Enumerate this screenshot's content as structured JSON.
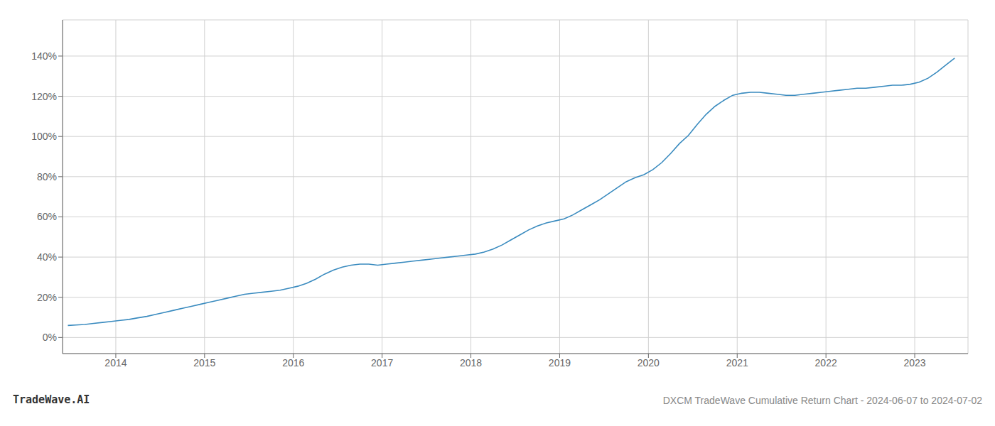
{
  "chart_data": {
    "type": "line",
    "title": "DXCM TradeWave Cumulative Return Chart - 2024-06-07 to 2024-07-02",
    "annotations": [
      "TradeWave.AI"
    ],
    "color": "#3a8bbf",
    "grid": true,
    "x": [
      2013.46,
      2013.55,
      2013.65,
      2013.75,
      2013.85,
      2013.95,
      2014.05,
      2014.15,
      2014.25,
      2014.35,
      2014.45,
      2014.55,
      2014.65,
      2014.75,
      2014.85,
      2014.95,
      2015.05,
      2015.15,
      2015.25,
      2015.35,
      2015.45,
      2015.55,
      2015.65,
      2015.75,
      2015.85,
      2015.95,
      2016.05,
      2016.15,
      2016.25,
      2016.35,
      2016.45,
      2016.55,
      2016.65,
      2016.75,
      2016.85,
      2016.95,
      2017.05,
      2017.15,
      2017.25,
      2017.35,
      2017.45,
      2017.55,
      2017.65,
      2017.75,
      2017.85,
      2017.95,
      2018.05,
      2018.15,
      2018.25,
      2018.35,
      2018.45,
      2018.55,
      2018.65,
      2018.75,
      2018.85,
      2018.95,
      2019.05,
      2019.15,
      2019.25,
      2019.35,
      2019.45,
      2019.55,
      2019.65,
      2019.75,
      2019.85,
      2019.95,
      2020.05,
      2020.15,
      2020.25,
      2020.35,
      2020.45,
      2020.55,
      2020.65,
      2020.75,
      2020.85,
      2020.95,
      2021.05,
      2021.15,
      2021.25,
      2021.35,
      2021.45,
      2021.55,
      2021.65,
      2021.75,
      2021.85,
      2021.95,
      2022.05,
      2022.15,
      2022.25,
      2022.35,
      2022.45,
      2022.55,
      2022.65,
      2022.75,
      2022.85,
      2022.95,
      2023.05,
      2023.15,
      2023.25,
      2023.35,
      2023.45
    ],
    "values": [
      6.0,
      6.2,
      6.5,
      7.0,
      7.5,
      8.0,
      8.5,
      9.0,
      9.8,
      10.5,
      11.5,
      12.5,
      13.5,
      14.5,
      15.5,
      16.5,
      17.5,
      18.5,
      19.5,
      20.5,
      21.5,
      22.0,
      22.5,
      23.0,
      23.5,
      24.5,
      25.5,
      27.0,
      29.0,
      31.5,
      33.5,
      35.0,
      36.0,
      36.5,
      36.5,
      36.0,
      36.5,
      37.0,
      37.5,
      38.0,
      38.5,
      39.0,
      39.5,
      40.0,
      40.5,
      41.0,
      41.5,
      42.5,
      44.0,
      46.0,
      48.5,
      51.0,
      53.5,
      55.5,
      57.0,
      58.0,
      59.0,
      61.0,
      63.5,
      66.0,
      68.5,
      71.5,
      74.5,
      77.5,
      79.5,
      81.0,
      83.5,
      87.0,
      91.5,
      96.5,
      100.5,
      106.0,
      111.0,
      115.0,
      118.0,
      120.5,
      121.5,
      122.0,
      122.0,
      121.5,
      121.0,
      120.5,
      120.5,
      121.0,
      121.5,
      122.0,
      122.5,
      123.0,
      123.5,
      124.0,
      124.0,
      124.5,
      125.0,
      125.5,
      125.5,
      126.0,
      127.0,
      129.0,
      132.0,
      135.5,
      139.0
    ],
    "xlim": [
      2013.4,
      2023.6
    ],
    "xticks": [
      2014,
      2015,
      2016,
      2017,
      2018,
      2019,
      2020,
      2021,
      2022,
      2023
    ],
    "ylim": [
      -8,
      158
    ],
    "yticks": [
      {
        "value": 0,
        "label": "0%"
      },
      {
        "value": 20,
        "label": "20%"
      },
      {
        "value": 40,
        "label": "40%"
      },
      {
        "value": 60,
        "label": "60%"
      },
      {
        "value": 80,
        "label": "80%"
      },
      {
        "value": 100,
        "label": "100%"
      },
      {
        "value": 120,
        "label": "120%"
      },
      {
        "value": 140,
        "label": "140%"
      }
    ]
  }
}
